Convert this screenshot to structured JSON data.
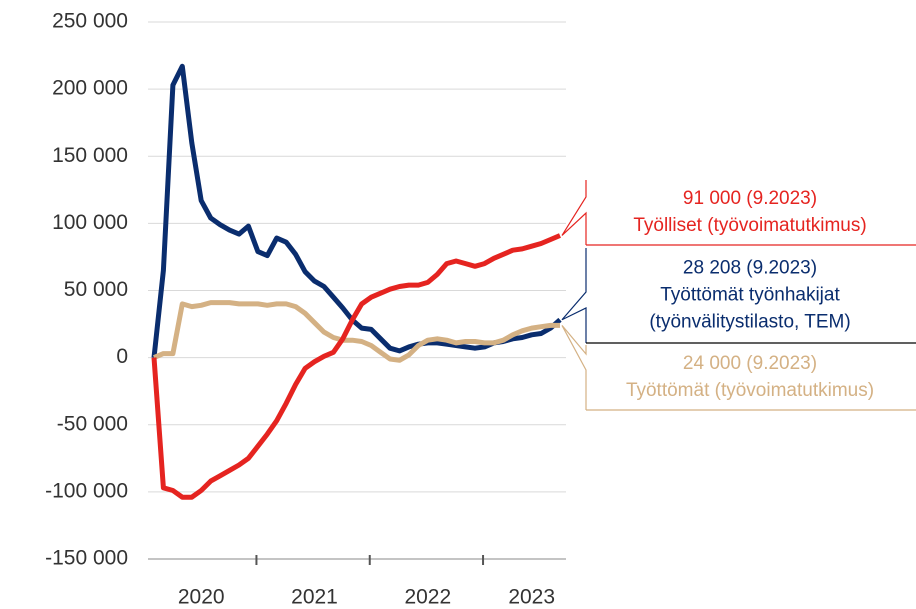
{
  "chart_data": {
    "type": "line",
    "categories": [
      null,
      null,
      null,
      null,
      null,
      "2020",
      null,
      null,
      null,
      null,
      null,
      null,
      null,
      null,
      null,
      null,
      null,
      "2021",
      null,
      null,
      null,
      null,
      null,
      null,
      null,
      null,
      null,
      null,
      null,
      "2022",
      null,
      null,
      null,
      null,
      null,
      null,
      null,
      null,
      null,
      null,
      "2023",
      null,
      null,
      null
    ],
    "ylim": [
      -150000,
      250000
    ],
    "yticks": [
      {
        "value": -150000,
        "label": "-150 000"
      },
      {
        "value": -100000,
        "label": "-100 000"
      },
      {
        "value": -50000,
        "label": "-50 000"
      },
      0,
      {
        "value": 50000,
        "label": "50 000"
      },
      {
        "value": 100000,
        "label": "100 000"
      },
      {
        "value": 150000,
        "label": "150 000"
      },
      {
        "value": 200000,
        "label": "200 000"
      },
      {
        "value": 250000,
        "label": "250 000"
      }
    ],
    "grid": true,
    "series": [
      {
        "name": [
          "Työlliset (työvoimatutkimus)"
        ],
        "color": "#e52420",
        "value_label": "91 000 (9.2023)",
        "values": [
          0,
          -97000,
          -99000,
          -104000,
          -104000,
          -99000,
          -92000,
          -88000,
          -84000,
          -80000,
          -75000,
          -66000,
          -57000,
          -47000,
          -34000,
          -20000,
          -8000,
          -3000,
          1000,
          4000,
          14000,
          28000,
          40000,
          45000,
          48000,
          51000,
          53000,
          54000,
          54000,
          56000,
          62000,
          70000,
          72000,
          70000,
          68000,
          70000,
          74000,
          77000,
          80000,
          81000,
          83000,
          85000,
          88000,
          91000
        ]
      },
      {
        "name": [
          "Työttömät työnhakijat",
          "(työnvälitystilasto, TEM)"
        ],
        "color": "#0a2d6e",
        "value_label": "28 208 (9.2023)",
        "values": [
          0,
          65000,
          203000,
          217000,
          160000,
          117000,
          104000,
          99000,
          95000,
          92000,
          98000,
          79000,
          76000,
          89000,
          86000,
          77000,
          64000,
          57000,
          53000,
          45000,
          37000,
          28000,
          22000,
          21000,
          14000,
          7000,
          5000,
          8000,
          10000,
          11000,
          11000,
          10000,
          9000,
          8000,
          7000,
          8000,
          11000,
          12000,
          14000,
          15000,
          17000,
          18000,
          22000,
          28208
        ]
      },
      {
        "name": [
          "Työttömät (työvoimatutkimus)"
        ],
        "color": "#d4b184",
        "value_label": "24 000 (9.2023)",
        "values": [
          0,
          3000,
          3000,
          40000,
          38000,
          39000,
          41000,
          41000,
          41000,
          40000,
          40000,
          40000,
          39000,
          40000,
          40000,
          38000,
          33000,
          26000,
          19000,
          15000,
          13000,
          13000,
          12000,
          9000,
          4000,
          -1000,
          -2000,
          2000,
          9000,
          13000,
          14000,
          13000,
          11000,
          12000,
          12000,
          11000,
          11000,
          13000,
          17000,
          20000,
          22000,
          23000,
          24000,
          24000
        ]
      }
    ]
  }
}
